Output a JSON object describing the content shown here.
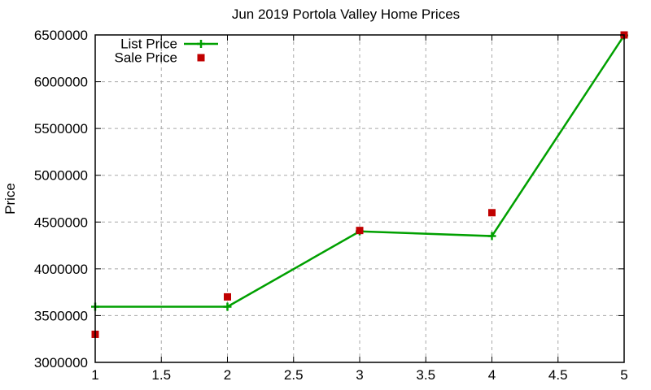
{
  "chart_data": {
    "type": "line",
    "title": "Jun 2019 Portola Valley Home Prices",
    "xlabel": "",
    "ylabel": "Price",
    "x": [
      1,
      2,
      3,
      4,
      5
    ],
    "series": [
      {
        "name": "List Price",
        "style": "lines+points",
        "marker": "plus",
        "color": "#00a000",
        "values": [
          3595000,
          3595000,
          4400000,
          4350000,
          6495000
        ]
      },
      {
        "name": "Sale Price",
        "style": "points",
        "marker": "square",
        "color": "#c00000",
        "values": [
          3300000,
          3700000,
          4410000,
          4600000,
          6500000
        ]
      }
    ],
    "xlim": [
      1,
      5
    ],
    "ylim": [
      3000000,
      6500000
    ],
    "xticks": [
      1,
      1.5,
      2,
      2.5,
      3,
      3.5,
      4,
      4.5,
      5
    ],
    "yticks": [
      3000000,
      3500000,
      4000000,
      4500000,
      5000000,
      5500000,
      6000000,
      6500000
    ],
    "grid": true,
    "legend_position": "top-left-inside",
    "colors": {
      "grid": "#a8a8a8",
      "axis": "#000000",
      "text": "#000000",
      "background": "#ffffff"
    }
  }
}
